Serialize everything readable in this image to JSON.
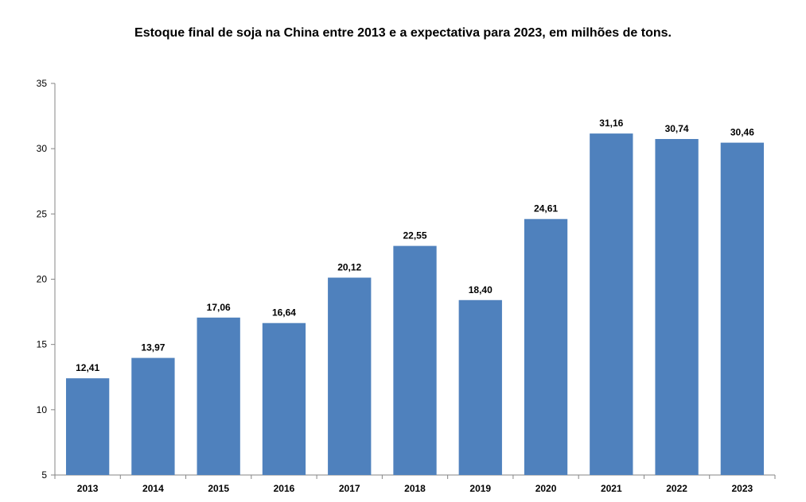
{
  "chart_data": {
    "type": "bar",
    "title": "Estoque final de soja na China entre 2013 e a expectativa para 2023, em milhões de tons.",
    "xlabel": "",
    "ylabel": "",
    "categories": [
      "2013",
      "2014",
      "2015",
      "2016",
      "2017",
      "2018",
      "2019",
      "2020",
      "2021",
      "2022",
      "2023"
    ],
    "values": [
      12.41,
      13.97,
      17.06,
      16.64,
      20.12,
      22.55,
      18.4,
      24.61,
      31.16,
      30.74,
      30.46
    ],
    "data_labels": [
      "12,41",
      "13,97",
      "17,06",
      "16,64",
      "20,12",
      "22,55",
      "18,40",
      "24,61",
      "31,16",
      "30,74",
      "30,46"
    ],
    "ylim": [
      5,
      35
    ],
    "yticks": [
      5,
      10,
      15,
      20,
      25,
      30,
      35
    ],
    "bar_color": "#4F81BD",
    "axis_color": "#868686",
    "grid": false,
    "legend": "none"
  }
}
